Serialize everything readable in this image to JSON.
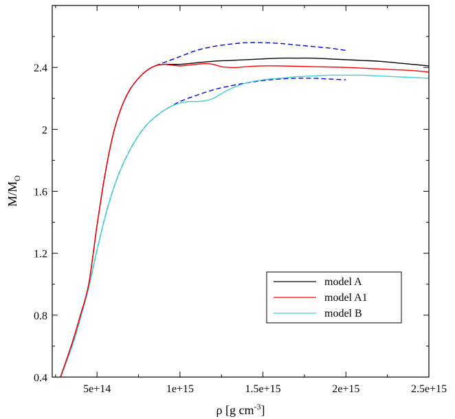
{
  "chart_data": {
    "type": "line",
    "title": "",
    "xlabel": "ρ  [g cm",
    "xlabel_sup": "-3",
    "xlabel_tail": "]",
    "ylabel": "M/M",
    "ylabel_sub": "O",
    "xlim": [
      230000000000000.0,
      2500000000000000.0
    ],
    "ylim": [
      0.4,
      2.8
    ],
    "grid": false,
    "legend_position": "bottom-right",
    "x_ticks": [
      {
        "value": 500000000000000.0,
        "label": "5e+14"
      },
      {
        "value": 1000000000000000.0,
        "label": "1e+15"
      },
      {
        "value": 1500000000000000.0,
        "label": "1.5e+15"
      },
      {
        "value": 2000000000000000.0,
        "label": "2e+15"
      },
      {
        "value": 2500000000000000.0,
        "label": "2.5e+15"
      }
    ],
    "y_ticks": [
      {
        "value": 0.4,
        "label": "0.4"
      },
      {
        "value": 0.8,
        "label": "0.8"
      },
      {
        "value": 1.2,
        "label": "1.2"
      },
      {
        "value": 1.6,
        "label": "1.6"
      },
      {
        "value": 2.0,
        "label": "2"
      },
      {
        "value": 2.4,
        "label": "2.4"
      }
    ],
    "series": [
      {
        "name": "model A",
        "color": "#000000",
        "dash": "solid",
        "in_legend": true,
        "x": [
          280000000000000.0,
          350000000000000.0,
          400000000000000.0,
          450000000000000.0,
          500000000000000.0,
          550000000000000.0,
          600000000000000.0,
          650000000000000.0,
          700000000000000.0,
          750000000000000.0,
          800000000000000.0,
          850000000000000.0,
          900000000000000.0,
          1000000000000000.0,
          1100000000000000.0,
          1200000000000000.0,
          1300000000000000.0,
          1400000000000000.0,
          1500000000000000.0,
          1600000000000000.0,
          1700000000000000.0,
          1800000000000000.0,
          1900000000000000.0,
          2000000000000000.0,
          2100000000000000.0,
          2200000000000000.0,
          2300000000000000.0,
          2400000000000000.0,
          2500000000000000.0
        ],
        "y": [
          0.4,
          0.62,
          0.8,
          1.0,
          1.38,
          1.72,
          1.98,
          2.15,
          2.26,
          2.33,
          2.38,
          2.41,
          2.42,
          2.42,
          2.43,
          2.44,
          2.445,
          2.45,
          2.455,
          2.46,
          2.46,
          2.46,
          2.455,
          2.45,
          2.445,
          2.44,
          2.43,
          2.42,
          2.41
        ]
      },
      {
        "name": "model A1",
        "color": "#ff0000",
        "dash": "solid",
        "in_legend": true,
        "x": [
          280000000000000.0,
          350000000000000.0,
          400000000000000.0,
          450000000000000.0,
          500000000000000.0,
          550000000000000.0,
          600000000000000.0,
          650000000000000.0,
          700000000000000.0,
          750000000000000.0,
          800000000000000.0,
          850000000000000.0,
          900000000000000.0,
          950000000000000.0,
          1000000000000000.0,
          1050000000000000.0,
          1100000000000000.0,
          1150000000000000.0,
          1200000000000000.0,
          1250000000000000.0,
          1300000000000000.0,
          1350000000000000.0,
          1400000000000000.0,
          1500000000000000.0,
          1600000000000000.0,
          1800000000000000.0,
          2000000000000000.0,
          2200000000000000.0,
          2400000000000000.0,
          2500000000000000.0
        ],
        "y": [
          0.4,
          0.62,
          0.8,
          1.0,
          1.38,
          1.72,
          1.98,
          2.15,
          2.26,
          2.33,
          2.38,
          2.41,
          2.42,
          2.415,
          2.41,
          2.415,
          2.42,
          2.425,
          2.42,
          2.405,
          2.4,
          2.4,
          2.405,
          2.41,
          2.41,
          2.405,
          2.4,
          2.39,
          2.38,
          2.37
        ]
      },
      {
        "name": "model B",
        "color": "#40d0d0",
        "dash": "solid",
        "in_legend": true,
        "x": [
          280000000000000.0,
          350000000000000.0,
          400000000000000.0,
          450000000000000.0,
          500000000000000.0,
          550000000000000.0,
          600000000000000.0,
          650000000000000.0,
          700000000000000.0,
          750000000000000.0,
          800000000000000.0,
          850000000000000.0,
          900000000000000.0,
          950000000000000.0,
          1000000000000000.0,
          1050000000000000.0,
          1100000000000000.0,
          1150000000000000.0,
          1200000000000000.0,
          1250000000000000.0,
          1300000000000000.0,
          1400000000000000.0,
          1500000000000000.0,
          1600000000000000.0,
          1700000000000000.0,
          1800000000000000.0,
          1900000000000000.0,
          2000000000000000.0,
          2100000000000000.0,
          2200000000000000.0,
          2300000000000000.0,
          2400000000000000.0,
          2500000000000000.0
        ],
        "y": [
          0.4,
          0.6,
          0.78,
          0.98,
          1.22,
          1.44,
          1.62,
          1.76,
          1.87,
          1.96,
          2.03,
          2.08,
          2.12,
          2.15,
          2.17,
          2.18,
          2.18,
          2.185,
          2.2,
          2.23,
          2.26,
          2.3,
          2.32,
          2.33,
          2.34,
          2.345,
          2.35,
          2.35,
          2.35,
          2.345,
          2.34,
          2.335,
          2.33
        ]
      },
      {
        "color": "#0000dd",
        "dash": "dashed",
        "in_legend": false,
        "x": [
          280000000000000.0,
          350000000000000.0,
          400000000000000.0,
          450000000000000.0,
          500000000000000.0,
          550000000000000.0,
          600000000000000.0,
          650000000000000.0,
          700000000000000.0,
          750000000000000.0,
          800000000000000.0,
          850000000000000.0,
          900000000000000.0,
          1000000000000000.0,
          1100000000000000.0,
          1200000000000000.0,
          1300000000000000.0,
          1400000000000000.0,
          1500000000000000.0,
          1600000000000000.0,
          1700000000000000.0,
          1800000000000000.0,
          1900000000000000.0,
          2000000000000000.0
        ],
        "y": [
          0.4,
          0.62,
          0.8,
          1.0,
          1.38,
          1.72,
          1.98,
          2.15,
          2.26,
          2.33,
          2.38,
          2.41,
          2.43,
          2.47,
          2.51,
          2.535,
          2.55,
          2.56,
          2.56,
          2.555,
          2.545,
          2.535,
          2.525,
          2.51
        ]
      },
      {
        "color": "#0000dd",
        "dash": "dashed",
        "in_legend": false,
        "x": [
          280000000000000.0,
          350000000000000.0,
          400000000000000.0,
          450000000000000.0,
          500000000000000.0,
          550000000000000.0,
          600000000000000.0,
          650000000000000.0,
          700000000000000.0,
          750000000000000.0,
          800000000000000.0,
          850000000000000.0,
          900000000000000.0,
          950000000000000.0,
          1000000000000000.0,
          1100000000000000.0,
          1200000000000000.0,
          1300000000000000.0,
          1400000000000000.0,
          1500000000000000.0,
          1600000000000000.0,
          1700000000000000.0,
          1800000000000000.0,
          1900000000000000.0,
          2000000000000000.0
        ],
        "y": [
          0.4,
          0.6,
          0.78,
          0.98,
          1.22,
          1.44,
          1.62,
          1.76,
          1.87,
          1.96,
          2.03,
          2.08,
          2.12,
          2.15,
          2.18,
          2.22,
          2.255,
          2.28,
          2.3,
          2.315,
          2.325,
          2.33,
          2.33,
          2.325,
          2.32
        ]
      }
    ]
  }
}
